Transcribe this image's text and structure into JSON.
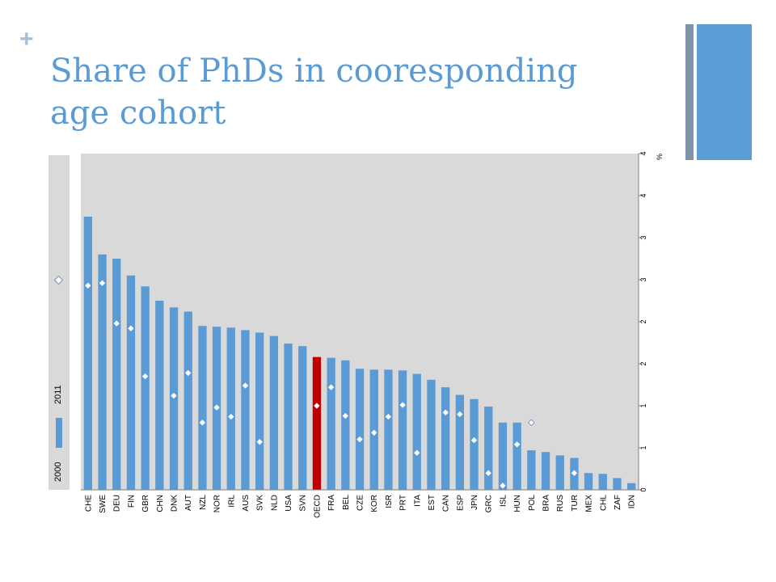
{
  "slide": {
    "plus_glyph": "+",
    "title_line1": "Share of PhDs in cooresponding",
    "title_line2": "age cohort"
  },
  "legend": {
    "series_2011": "2011",
    "series_2000": "2000"
  },
  "colors": {
    "bar": "#5b9bd5",
    "highlight": "#c00000",
    "plot_bg": "#d9d9d9",
    "marker_fill": "#ffffff",
    "marker_stroke": "#9cb5d6"
  },
  "chart_data": {
    "type": "bar",
    "categories": [
      "CHE",
      "SWE",
      "DEU",
      "FIN",
      "GBR",
      "CHN",
      "DNK",
      "AUT",
      "NZL",
      "NOR",
      "IRL",
      "AUS",
      "SVK",
      "NLD",
      "USA",
      "SVN",
      "OECD",
      "FRA",
      "BEL",
      "CZE",
      "KOR",
      "ISR",
      "PRT",
      "ITA",
      "EST",
      "CAN",
      "ESP",
      "JPN",
      "GRC",
      "ISL",
      "HUN",
      "POL",
      "BRA",
      "RUS",
      "TUR",
      "MEX",
      "CHL",
      "ZAF",
      "IDN"
    ],
    "highlight_category": "OECD",
    "series": [
      {
        "name": "2011",
        "kind": "bar",
        "values": [
          3.25,
          2.8,
          2.75,
          2.55,
          2.42,
          2.25,
          2.17,
          2.12,
          1.95,
          1.94,
          1.93,
          1.9,
          1.87,
          1.83,
          1.74,
          1.71,
          1.58,
          1.57,
          1.54,
          1.44,
          1.43,
          1.43,
          1.42,
          1.38,
          1.31,
          1.22,
          1.13,
          1.08,
          0.99,
          0.8,
          0.8,
          0.47,
          0.45,
          0.41,
          0.38,
          0.2,
          0.19,
          0.14,
          0.08
        ]
      },
      {
        "name": "2000",
        "kind": "marker",
        "values": [
          2.43,
          2.46,
          1.98,
          1.92,
          1.35,
          null,
          1.12,
          1.39,
          0.8,
          0.98,
          0.87,
          1.24,
          0.57,
          null,
          null,
          null,
          1.0,
          1.22,
          0.88,
          0.6,
          0.68,
          0.87,
          1.01,
          0.44,
          null,
          0.92,
          0.9,
          0.59,
          0.2,
          0.05,
          0.54,
          0.8,
          null,
          null,
          0.2,
          null,
          null,
          null,
          null
        ]
      }
    ],
    "y_tick_values": [
      0,
      0.5,
      1,
      1.5,
      2,
      2.5,
      3,
      3.5,
      4
    ],
    "y_tick_labels": [
      "0",
      "1",
      "1",
      "2",
      "2",
      "3",
      "3",
      "4",
      "4"
    ],
    "ylim": [
      0,
      4
    ],
    "yunit": "%",
    "y_axis_side": "right",
    "grid": false
  }
}
